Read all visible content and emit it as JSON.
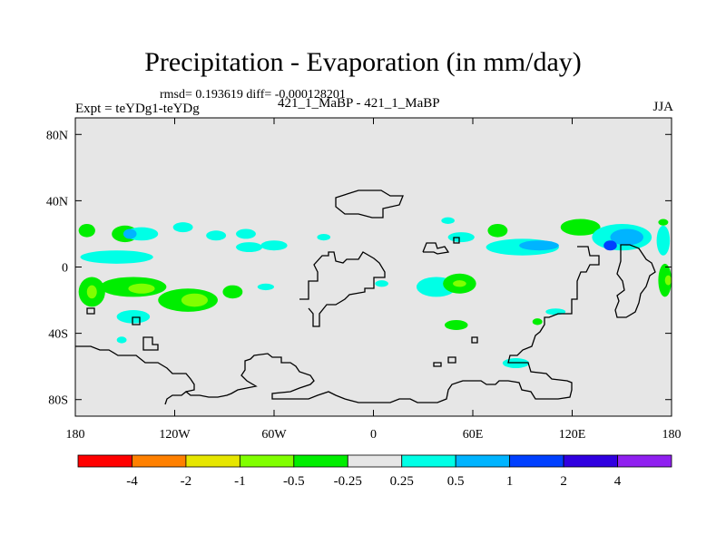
{
  "chart_data": {
    "type": "heatmap",
    "title": "Precipitation - Evaporation (in mm/day)",
    "stats_text": "rmsd= 0.193619 diff= -0.000128201",
    "experiment_text": "Expt = teYDg1-teYDg",
    "cases_text": "421_1_MaBP - 421_1_MaBP",
    "season": "JJA",
    "xlim": [
      -180,
      180
    ],
    "ylim": [
      -90,
      90
    ],
    "x_ticks": [
      {
        "value": -180,
        "label": "180"
      },
      {
        "value": -120,
        "label": "120W"
      },
      {
        "value": -60,
        "label": "60W"
      },
      {
        "value": 0,
        "label": "0"
      },
      {
        "value": 60,
        "label": "60E"
      },
      {
        "value": 120,
        "label": "120E"
      },
      {
        "value": 180,
        "label": "180"
      }
    ],
    "y_ticks": [
      {
        "value": 80,
        "label": "80N"
      },
      {
        "value": 40,
        "label": "40N"
      },
      {
        "value": 0,
        "label": "0"
      },
      {
        "value": -40,
        "label": "40S"
      },
      {
        "value": -80,
        "label": "80S"
      }
    ],
    "colorbar": {
      "colors": [
        "#ff0000",
        "#ff8000",
        "#e6e600",
        "#80ff00",
        "#00ee00",
        "#e6e6e6",
        "#00ffe6",
        "#00b4ff",
        "#0040ff",
        "#3000e0",
        "#9020f0"
      ],
      "labels": [
        "-4",
        "-2",
        "-1",
        "-0.5",
        "-0.25",
        "0.25",
        "0.5",
        "1",
        "2",
        "4"
      ]
    },
    "background_color": "#e6e6e6",
    "patches": [
      {
        "lon": -173,
        "lat": 22,
        "rx": 5,
        "ry": 4,
        "level": 4
      },
      {
        "lon": -150,
        "lat": 20,
        "rx": 8,
        "ry": 5,
        "level": 4
      },
      {
        "lon": -155,
        "lat": 6,
        "rx": 22,
        "ry": 4,
        "level": 6
      },
      {
        "lon": -140,
        "lat": 20,
        "rx": 10,
        "ry": 4,
        "level": 6
      },
      {
        "lon": -147,
        "lat": 20,
        "rx": 4,
        "ry": 3,
        "level": 7
      },
      {
        "lon": -115,
        "lat": 24,
        "rx": 6,
        "ry": 3,
        "level": 6
      },
      {
        "lon": -95,
        "lat": 19,
        "rx": 6,
        "ry": 3,
        "level": 6
      },
      {
        "lon": -77,
        "lat": 20,
        "rx": 6,
        "ry": 3,
        "level": 6
      },
      {
        "lon": -75,
        "lat": 12,
        "rx": 8,
        "ry": 3,
        "level": 6
      },
      {
        "lon": -60,
        "lat": 13,
        "rx": 8,
        "ry": 3,
        "level": 6
      },
      {
        "lon": -30,
        "lat": 18,
        "rx": 4,
        "ry": 2,
        "level": 6
      },
      {
        "lon": -170,
        "lat": -15,
        "rx": 8,
        "ry": 9,
        "level": 4
      },
      {
        "lon": -170,
        "lat": -15,
        "rx": 3,
        "ry": 4,
        "level": 3
      },
      {
        "lon": -145,
        "lat": -12,
        "rx": 20,
        "ry": 6,
        "level": 4
      },
      {
        "lon": -140,
        "lat": -13,
        "rx": 8,
        "ry": 3,
        "level": 3
      },
      {
        "lon": -112,
        "lat": -20,
        "rx": 18,
        "ry": 7,
        "level": 4
      },
      {
        "lon": -108,
        "lat": -20,
        "rx": 8,
        "ry": 4,
        "level": 3
      },
      {
        "lon": -85,
        "lat": -15,
        "rx": 6,
        "ry": 4,
        "level": 4
      },
      {
        "lon": -145,
        "lat": -30,
        "rx": 10,
        "ry": 4,
        "level": 6
      },
      {
        "lon": -152,
        "lat": -44,
        "rx": 3,
        "ry": 2,
        "level": 6
      },
      {
        "lon": -65,
        "lat": -12,
        "rx": 5,
        "ry": 2,
        "level": 6
      },
      {
        "lon": 38,
        "lat": -12,
        "rx": 12,
        "ry": 6,
        "level": 6
      },
      {
        "lon": 52,
        "lat": -10,
        "rx": 10,
        "ry": 6,
        "level": 4
      },
      {
        "lon": 52,
        "lat": -10,
        "rx": 4,
        "ry": 2,
        "level": 3
      },
      {
        "lon": 50,
        "lat": -35,
        "rx": 7,
        "ry": 3,
        "level": 4
      },
      {
        "lon": 45,
        "lat": 28,
        "rx": 4,
        "ry": 2,
        "level": 6
      },
      {
        "lon": 53,
        "lat": 18,
        "rx": 8,
        "ry": 3,
        "level": 6
      },
      {
        "lon": 75,
        "lat": 22,
        "rx": 6,
        "ry": 4,
        "level": 4
      },
      {
        "lon": 90,
        "lat": 12,
        "rx": 22,
        "ry": 5,
        "level": 6
      },
      {
        "lon": 100,
        "lat": 13,
        "rx": 12,
        "ry": 3,
        "level": 7
      },
      {
        "lon": 125,
        "lat": 24,
        "rx": 12,
        "ry": 5,
        "level": 4
      },
      {
        "lon": 150,
        "lat": 18,
        "rx": 18,
        "ry": 8,
        "level": 6
      },
      {
        "lon": 153,
        "lat": 18,
        "rx": 10,
        "ry": 5,
        "level": 7
      },
      {
        "lon": 143,
        "lat": 13,
        "rx": 4,
        "ry": 3,
        "level": 8
      },
      {
        "lon": 175,
        "lat": 16,
        "rx": 4,
        "ry": 9,
        "level": 6
      },
      {
        "lon": 176,
        "lat": -8,
        "rx": 4,
        "ry": 10,
        "level": 4
      },
      {
        "lon": 178,
        "lat": -8,
        "rx": 2,
        "ry": 3,
        "level": 3
      },
      {
        "lon": 86,
        "lat": -58,
        "rx": 8,
        "ry": 3,
        "level": 6
      },
      {
        "lon": 110,
        "lat": -27,
        "rx": 6,
        "ry": 2,
        "level": 6
      },
      {
        "lon": 99,
        "lat": -33,
        "rx": 3,
        "ry": 2,
        "level": 4
      },
      {
        "lon": 175,
        "lat": 27,
        "rx": 3,
        "ry": 2,
        "level": 4
      },
      {
        "lon": 5,
        "lat": -10,
        "rx": 4,
        "ry": 2,
        "level": 6
      }
    ]
  }
}
